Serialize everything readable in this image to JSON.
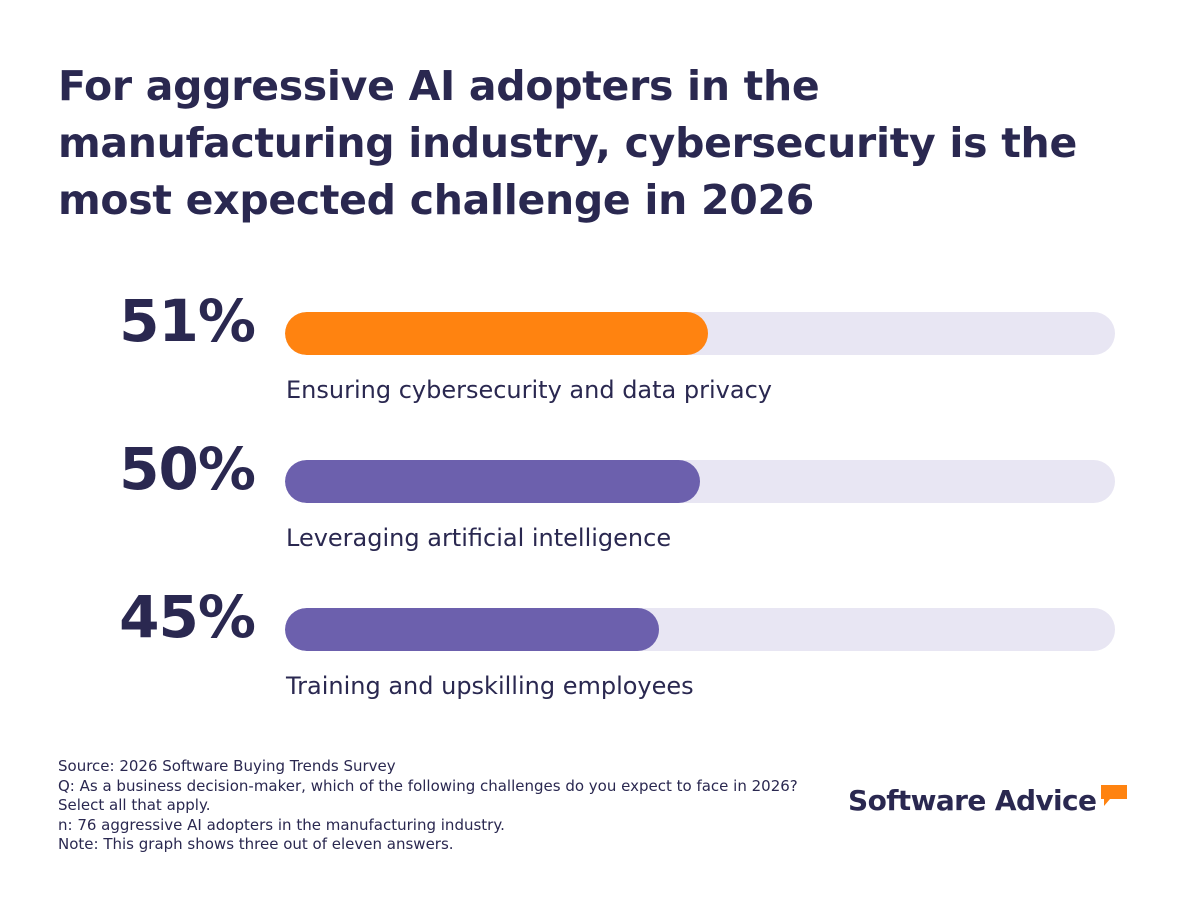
{
  "title": "For aggressive AI adopters in the manufacturing industry, cybersecurity is the most expected challenge in 2026",
  "colors": {
    "highlight": "#ff8310",
    "bar": "#6c60ad",
    "track": "#e8e6f3",
    "text": "#2a2850"
  },
  "chart_data": {
    "type": "bar",
    "orientation": "horizontal",
    "title": "For aggressive AI adopters in the manufacturing industry, cybersecurity is the most expected challenge in 2026",
    "categories": [
      "Ensuring cybersecurity and data privacy",
      "Leveraging artificial intelligence",
      "Training and upskilling employees"
    ],
    "values": [
      51,
      50,
      45
    ],
    "value_labels": [
      "51%",
      "50%",
      "45%"
    ],
    "unit": "%",
    "xlim": [
      0,
      100
    ],
    "xlabel": "",
    "ylabel": ""
  },
  "footnote": {
    "source": "Source: 2026 Software Buying Trends Survey",
    "question_line1": "Q: As a business decision-maker, which of the following challenges do you expect to face in 2026?",
    "question_line2": "Select all that apply.",
    "sample": "n: 76 aggressive AI adopters in the manufacturing industry.",
    "note": "Note: This graph shows three out of eleven answers."
  },
  "logo": {
    "text": "Software Advice",
    "icon": "speech-bubble-icon"
  }
}
